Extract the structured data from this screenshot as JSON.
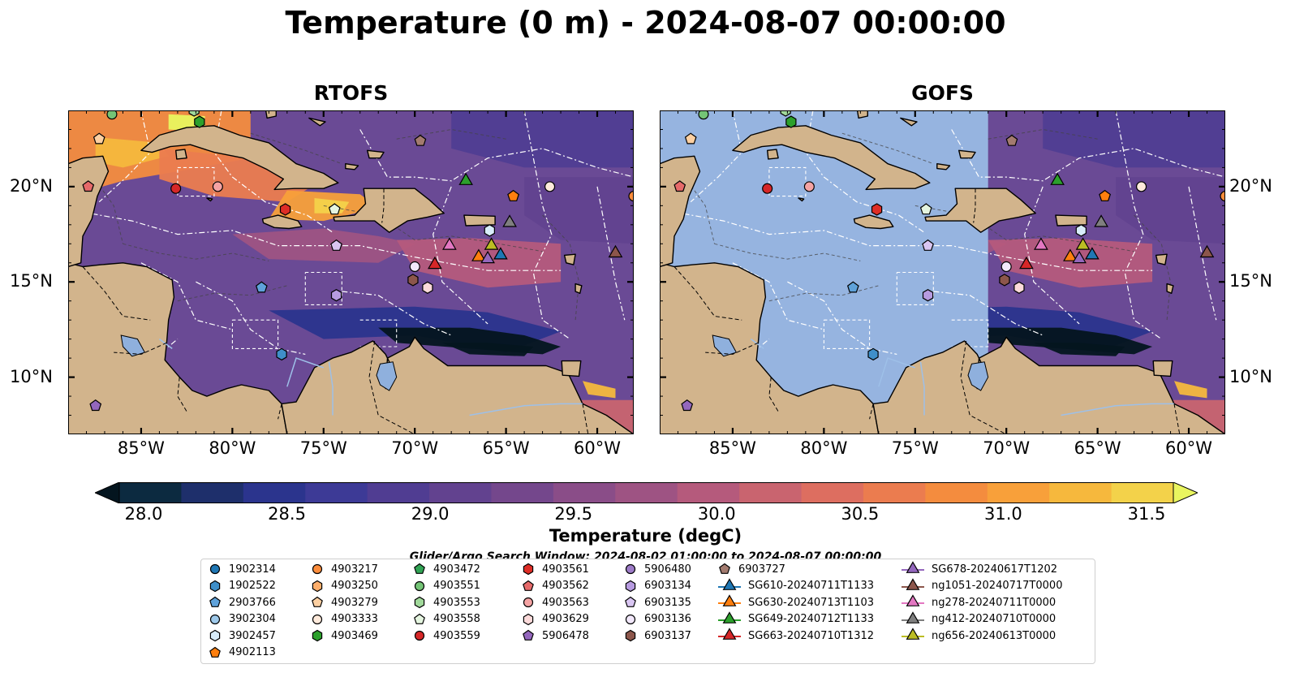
{
  "title": "Temperature (0 m) - 2024-08-07 00:00:00",
  "panels": [
    {
      "title": "RTOFS"
    },
    {
      "title": "GOFS"
    }
  ],
  "map_extent": {
    "lon": [
      -89,
      -58
    ],
    "lat": [
      7,
      24
    ]
  },
  "lon_ticks": [
    {
      "value": -85,
      "label": "85°W"
    },
    {
      "value": -80,
      "label": "80°W"
    },
    {
      "value": -75,
      "label": "75°W"
    },
    {
      "value": -70,
      "label": "70°W"
    },
    {
      "value": -65,
      "label": "65°W"
    },
    {
      "value": -60,
      "label": "60°W"
    }
  ],
  "lat_ticks": [
    {
      "value": 20,
      "label": "20°N"
    },
    {
      "value": 15,
      "label": "15°N"
    },
    {
      "value": 10,
      "label": "10°N"
    }
  ],
  "colorbar": {
    "label": "Temperature (degC)",
    "min": 28.0,
    "max": 31.5,
    "ticks": [
      "28.0",
      "28.5",
      "29.0",
      "29.5",
      "30.0",
      "30.5",
      "31.0",
      "31.5"
    ],
    "colors": [
      "#0c2a40",
      "#1e2f6b",
      "#2b348d",
      "#3d3a96",
      "#503d92",
      "#62428f",
      "#74478c",
      "#8a4d88",
      "#9e5383",
      "#b55a7c",
      "#c9646f",
      "#dd6e60",
      "#eb7c4f",
      "#f48c3e",
      "#f8a03a",
      "#f6b83d",
      "#f3d24a"
    ],
    "under_color": "#04151f",
    "over_color": "#e9f55f"
  },
  "search_window": "Glider/Argo Search Window: 2024-08-02 01:00:00 to 2024-08-07 00:00:00",
  "legend": {
    "columns": [
      [
        {
          "label": "1902314",
          "marker": "circle",
          "color": "#1f77b4"
        },
        {
          "label": "1902522",
          "marker": "hexagon",
          "color": "#3f8fc9"
        },
        {
          "label": "2903766",
          "marker": "pentagon",
          "color": "#5fa2da"
        },
        {
          "label": "3902304",
          "marker": "circle",
          "color": "#9ec9ea"
        },
        {
          "label": "3902457",
          "marker": "hexagon",
          "color": "#d8ecfa"
        },
        {
          "label": "4902113",
          "marker": "pentagon",
          "color": "#ff7f0e"
        }
      ],
      [
        {
          "label": "4903217",
          "marker": "circle",
          "color": "#fd8d3c"
        },
        {
          "label": "4903250",
          "marker": "hexagon",
          "color": "#fdae6b"
        },
        {
          "label": "4903279",
          "marker": "pentagon",
          "color": "#fdd0a2"
        },
        {
          "label": "4903333",
          "marker": "circle",
          "color": "#feeadb"
        },
        {
          "label": "4903469",
          "marker": "hexagon",
          "color": "#2ca02c"
        }
      ],
      [
        {
          "label": "4903472",
          "marker": "pentagon",
          "color": "#31a354"
        },
        {
          "label": "4903551",
          "marker": "circle",
          "color": "#74c476"
        },
        {
          "label": "4903553",
          "marker": "hexagon",
          "color": "#a1d99b"
        },
        {
          "label": "4903558",
          "marker": "pentagon",
          "color": "#e5f5e0"
        },
        {
          "label": "4903559",
          "marker": "circle",
          "color": "#d62728"
        }
      ],
      [
        {
          "label": "4903561",
          "marker": "hexagon",
          "color": "#de2d26"
        },
        {
          "label": "4903562",
          "marker": "pentagon",
          "color": "#e66a6a"
        },
        {
          "label": "4903563",
          "marker": "circle",
          "color": "#f4a3a3"
        },
        {
          "label": "4903629",
          "marker": "hexagon",
          "color": "#fcdada"
        },
        {
          "label": "5906478",
          "marker": "pentagon",
          "color": "#9467bd"
        }
      ],
      [
        {
          "label": "5906480",
          "marker": "circle",
          "color": "#9e7cc8"
        },
        {
          "label": "6903134",
          "marker": "hexagon",
          "color": "#b79be0"
        },
        {
          "label": "6903135",
          "marker": "pentagon",
          "color": "#d9c6f2"
        },
        {
          "label": "6903136",
          "marker": "circle",
          "color": "#f2e8fb"
        },
        {
          "label": "6903137",
          "marker": "hexagon",
          "color": "#8c564b"
        }
      ],
      [
        {
          "label": "6903727",
          "marker": "pentagon",
          "color": "#a37b6f"
        },
        {
          "label": "SG610-20240711T1133",
          "marker": "triangle",
          "color": "#1f77b4"
        },
        {
          "label": "SG630-20240713T1103",
          "marker": "triangle",
          "color": "#ff7f0e"
        },
        {
          "label": "SG649-20240712T1133",
          "marker": "triangle",
          "color": "#2ca02c"
        },
        {
          "label": "SG663-20240710T1312",
          "marker": "triangle",
          "color": "#d62728"
        }
      ],
      [
        {
          "label": "SG678-20240617T1202",
          "marker": "triangle",
          "color": "#9467bd"
        },
        {
          "label": "ng1051-20240717T0000",
          "marker": "triangle",
          "color": "#8c564b"
        },
        {
          "label": "ng278-20240711T0000",
          "marker": "triangle",
          "color": "#e377c2"
        },
        {
          "label": "ng412-20240710T0000",
          "marker": "triangle",
          "color": "#7f7f7f"
        },
        {
          "label": "ng656-20240613T0000",
          "marker": "triangle",
          "color": "#bcbd22"
        }
      ]
    ]
  },
  "observations": [
    {
      "id": "4903551",
      "lon": -86.6,
      "lat": 23.8
    },
    {
      "id": "4903553",
      "lon": -82.1,
      "lat": 24.0
    },
    {
      "id": "4903469",
      "lon": -81.8,
      "lat": 23.4
    },
    {
      "id": "4903279",
      "lon": -87.3,
      "lat": 22.5
    },
    {
      "id": "4903562",
      "lon": -87.9,
      "lat": 20.0
    },
    {
      "id": "4903559",
      "lon": -83.1,
      "lat": 19.9
    },
    {
      "id": "4903563",
      "lon": -80.8,
      "lat": 20.0
    },
    {
      "id": "4903561",
      "lon": -77.1,
      "lat": 18.8
    },
    {
      "id": "4903558",
      "lon": -74.4,
      "lat": 18.8
    },
    {
      "id": "6903135",
      "lon": -74.3,
      "lat": 16.9
    },
    {
      "id": "2903766",
      "lon": -78.4,
      "lat": 14.7
    },
    {
      "id": "6903134",
      "lon": -74.3,
      "lat": 14.3
    },
    {
      "id": "1902522",
      "lon": -77.3,
      "lat": 11.2
    },
    {
      "id": "5906478",
      "lon": -87.5,
      "lat": 8.5
    },
    {
      "id": "6903727",
      "lon": -69.7,
      "lat": 22.4
    },
    {
      "id": "4902113",
      "lon": -64.6,
      "lat": 19.5
    },
    {
      "id": "4903333",
      "lon": -62.6,
      "lat": 20.0
    },
    {
      "id": "4903217",
      "lon": -58.0,
      "lat": 19.5
    },
    {
      "id": "3902457",
      "lon": -65.9,
      "lat": 17.7
    },
    {
      "id": "6903136",
      "lon": -70.0,
      "lat": 15.8
    },
    {
      "id": "6903137",
      "lon": -70.1,
      "lat": 15.1
    },
    {
      "id": "4903629",
      "lon": -69.3,
      "lat": 14.7
    },
    {
      "id": "SG649-20240712T1133",
      "lon": -67.2,
      "lat": 20.3
    },
    {
      "id": "ng278-20240711T0000",
      "lon": -68.1,
      "lat": 16.9
    },
    {
      "id": "SG663-20240710T1312",
      "lon": -68.9,
      "lat": 15.9
    },
    {
      "id": "SG630-20240713T1103",
      "lon": -66.5,
      "lat": 16.3
    },
    {
      "id": "SG678-20240617T1202",
      "lon": -66.0,
      "lat": 16.2
    },
    {
      "id": "SG610-20240711T1133",
      "lon": -65.3,
      "lat": 16.4
    },
    {
      "id": "ng656-20240613T0000",
      "lon": -65.8,
      "lat": 16.9
    },
    {
      "id": "ng412-20240710T0000",
      "lon": -64.8,
      "lat": 18.1
    },
    {
      "id": "ng1051-20240717T0000",
      "lon": -59.0,
      "lat": 16.5
    }
  ],
  "gofs_data_min_lon": -71.0,
  "colors": {
    "land": "#d2b48c",
    "gofs_fill": "#96b4e0",
    "ocean_base": "#6a4a95",
    "lakes": "#8fb0dd"
  }
}
